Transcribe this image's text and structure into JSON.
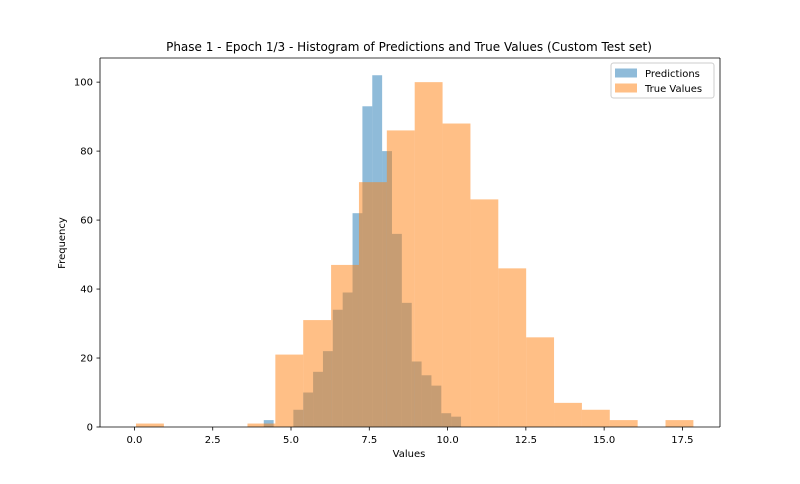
{
  "chart_data": {
    "type": "histogram",
    "title": "Phase 1 - Epoch 1/3 - Histogram of Predictions and True Values (Custom Test set)",
    "xlabel": "Values",
    "ylabel": "Frequency",
    "xlim": [
      -1.1,
      18.7
    ],
    "ylim": [
      0,
      107
    ],
    "xticks": [
      0.0,
      2.5,
      5.0,
      7.5,
      10.0,
      12.5,
      15.0,
      17.5
    ],
    "xtick_labels": [
      "0.0",
      "2.5",
      "5.0",
      "7.5",
      "10.0",
      "12.5",
      "15.0",
      "17.5"
    ],
    "yticks": [
      0,
      20,
      40,
      60,
      80,
      100
    ],
    "ytick_labels": [
      "0",
      "20",
      "40",
      "60",
      "80",
      "100"
    ],
    "grid": false,
    "legend_position": "top-right",
    "series": [
      {
        "name": "Predictions",
        "color": "#1f77b4",
        "opacity": 0.5,
        "bin_edges": [
          4.13,
          4.445,
          4.76,
          5.075,
          5.39,
          5.705,
          6.02,
          6.335,
          6.65,
          6.965,
          7.28,
          7.595,
          7.91,
          8.225,
          8.54,
          8.855,
          9.17,
          9.485,
          9.8,
          10.115,
          10.43
        ],
        "counts": [
          2,
          0,
          0,
          5,
          10,
          16,
          22,
          34,
          39,
          62,
          93,
          102,
          80,
          56,
          36,
          19,
          15,
          12,
          4,
          3
        ]
      },
      {
        "name": "True Values",
        "color": "#ff7f0e",
        "opacity": 0.5,
        "bin_edges": [
          0.05,
          0.94,
          1.83,
          2.72,
          3.61,
          4.5,
          5.39,
          6.28,
          7.17,
          8.06,
          8.95,
          9.84,
          10.73,
          11.62,
          12.51,
          13.4,
          14.29,
          15.18,
          16.07,
          16.96,
          17.85
        ],
        "counts": [
          1,
          0,
          0,
          0,
          1,
          21,
          31,
          47,
          71,
          86,
          100,
          88,
          66,
          46,
          26,
          7,
          5,
          2,
          0,
          2
        ]
      }
    ]
  }
}
